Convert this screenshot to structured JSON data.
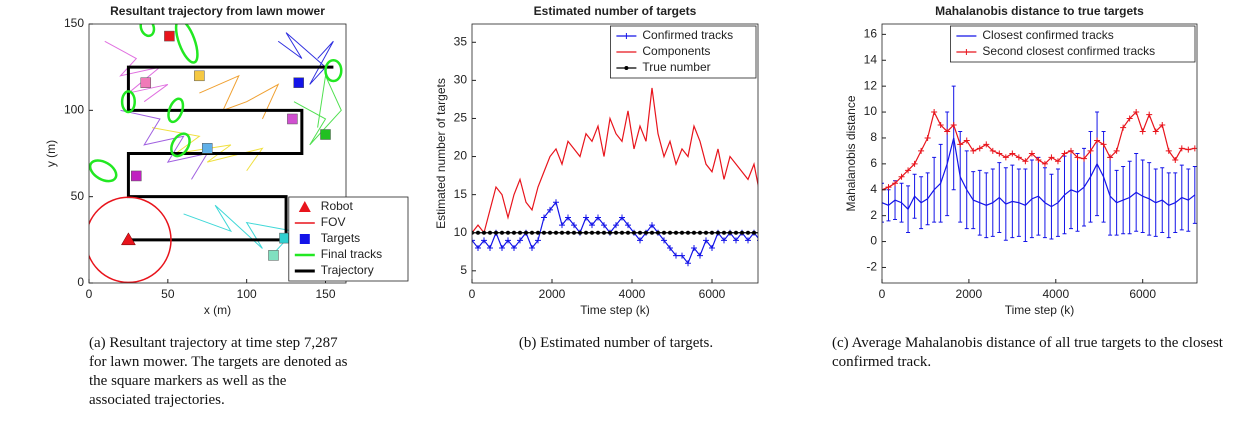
{
  "chart_data": [
    {
      "type": "trajectory",
      "title": "Resultant trajectory from lawn mower",
      "xlabel": "x (m)",
      "ylabel": "y (m)",
      "xlim": [
        0,
        163
      ],
      "ylim": [
        0,
        150
      ],
      "xticks": [
        0,
        50,
        100,
        150
      ],
      "yticks": [
        0,
        50,
        100,
        150
      ],
      "legend": "lower right",
      "robot": {
        "name": "Robot",
        "color": "#e8141c",
        "x": 25,
        "y": 25
      },
      "fov": {
        "name": "FOV",
        "color": "#e8141c",
        "radius": 27
      },
      "targets": {
        "name": "Targets",
        "color": "#1414e8",
        "points": [
          {
            "x": 51,
            "y": 143,
            "color": "#e8141c"
          },
          {
            "x": 36,
            "y": 116,
            "color": "#f07ab8"
          },
          {
            "x": 70,
            "y": 120,
            "color": "#f5c842"
          },
          {
            "x": 133,
            "y": 116,
            "color": "#1414e8"
          },
          {
            "x": 129,
            "y": 95,
            "color": "#d050d0"
          },
          {
            "x": 150,
            "y": 86,
            "color": "#22c022"
          },
          {
            "x": 75,
            "y": 78,
            "color": "#60b0e8"
          },
          {
            "x": 30,
            "y": 62,
            "color": "#c020c0"
          },
          {
            "x": 124,
            "y": 26,
            "color": "#30d0d0"
          },
          {
            "x": 117,
            "y": 16,
            "color": "#80e0c0"
          }
        ]
      },
      "final_tracks": {
        "name": "Final tracks",
        "color": "#22e822",
        "ellipses": [
          {
            "x": 37,
            "y": 148,
            "rx": 4,
            "ry": 5,
            "angle": 20
          },
          {
            "x": 62,
            "y": 140,
            "rx": 5,
            "ry": 13,
            "angle": 20
          },
          {
            "x": 25,
            "y": 105,
            "rx": 4,
            "ry": 6,
            "angle": 0
          },
          {
            "x": 55,
            "y": 100,
            "rx": 4,
            "ry": 7,
            "angle": -20
          },
          {
            "x": 58,
            "y": 80,
            "rx": 5,
            "ry": 7,
            "angle": -30
          },
          {
            "x": 9,
            "y": 65,
            "rx": 9,
            "ry": 5,
            "angle": -30
          },
          {
            "x": 155,
            "y": 123,
            "rx": 5,
            "ry": 6,
            "angle": 0
          },
          {
            "x": 158,
            "y": 17,
            "rx": 5,
            "ry": 6,
            "angle": 0
          }
        ]
      },
      "trajectory": {
        "name": "Trajectory",
        "color": "#000000",
        "x": [
          25,
          125,
          125,
          25,
          25,
          135,
          135,
          25,
          25,
          155
        ],
        "y": [
          25,
          25,
          50,
          50,
          75,
          75,
          100,
          100,
          125,
          125
        ]
      },
      "target_paths": [
        {
          "color": "#e070e0",
          "x": [
            10,
            30,
            20,
            45,
            25,
            50,
            35
          ],
          "y": [
            140,
            130,
            120,
            125,
            110,
            115,
            105
          ]
        },
        {
          "color": "#f0e040",
          "x": [
            40,
            70,
            55,
            90,
            75,
            110,
            100
          ],
          "y": [
            90,
            85,
            75,
            80,
            70,
            78,
            65
          ]
        },
        {
          "color": "#3030e0",
          "x": [
            120,
            135,
            125,
            150,
            140,
            155,
            145
          ],
          "y": [
            140,
            130,
            145,
            125,
            115,
            140,
            130
          ]
        },
        {
          "color": "#40d8d8",
          "x": [
            60,
            90,
            80,
            110,
            100,
            130,
            115
          ],
          "y": [
            40,
            30,
            45,
            20,
            35,
            30,
            15
          ]
        },
        {
          "color": "#50e050",
          "x": [
            130,
            150,
            140,
            160,
            150,
            145
          ],
          "y": [
            105,
            95,
            80,
            100,
            120,
            90
          ]
        },
        {
          "color": "#a060e0",
          "x": [
            20,
            45,
            35,
            60,
            50,
            75,
            65
          ],
          "y": [
            100,
            95,
            80,
            85,
            70,
            75,
            60
          ]
        },
        {
          "color": "#f0a030",
          "x": [
            70,
            95,
            85,
            100,
            120,
            110
          ],
          "y": [
            110,
            120,
            100,
            105,
            115,
            95
          ]
        }
      ]
    },
    {
      "type": "line",
      "title": "Estimated number of targets",
      "xlabel": "Time step (k)",
      "ylabel": "Estimated number of targets",
      "xlim": [
        0,
        7150
      ],
      "ylim": [
        3.4,
        37.4
      ],
      "xticks": [
        0,
        2000,
        4000,
        6000
      ],
      "yticks": [
        5,
        10,
        15,
        20,
        25,
        30,
        35
      ],
      "legend": "upper right",
      "x": [
        0,
        150,
        300,
        450,
        600,
        750,
        900,
        1050,
        1200,
        1350,
        1500,
        1650,
        1800,
        1950,
        2100,
        2250,
        2400,
        2550,
        2700,
        2850,
        3000,
        3150,
        3300,
        3450,
        3600,
        3750,
        3900,
        4050,
        4200,
        4350,
        4500,
        4650,
        4800,
        4950,
        5100,
        5250,
        5400,
        5550,
        5700,
        5850,
        6000,
        6150,
        6300,
        6450,
        6600,
        6750,
        6900,
        7050,
        7200
      ],
      "series": [
        {
          "name": "Confirmed tracks",
          "color": "#1414e8",
          "marker": "+",
          "values": [
            9,
            8,
            9,
            8,
            10,
            8,
            9,
            8,
            9,
            10,
            8,
            9,
            12,
            13,
            14,
            11,
            12,
            11,
            10,
            12,
            11,
            12,
            11,
            10,
            11,
            12,
            11,
            10,
            9,
            10,
            11,
            10,
            9,
            8,
            7,
            7,
            6,
            8,
            7,
            9,
            8,
            10,
            9,
            10,
            9,
            10,
            9,
            10,
            9
          ]
        },
        {
          "name": "Components",
          "color": "#e8141c",
          "marker": "none",
          "values": [
            10,
            11,
            10,
            13,
            16,
            15,
            12,
            15,
            17,
            14,
            13,
            16,
            18,
            20,
            21,
            19,
            22,
            21,
            20,
            23,
            22,
            24,
            20,
            25,
            23,
            22,
            26,
            21,
            24,
            22,
            29,
            23,
            20,
            22,
            19,
            21,
            20,
            24,
            22,
            19,
            18,
            21,
            17,
            20,
            19,
            18,
            17,
            19,
            15
          ]
        },
        {
          "name": "True number",
          "color": "#000000",
          "marker": "o",
          "values": [
            10,
            10,
            10,
            10,
            10,
            10,
            10,
            10,
            10,
            10,
            10,
            10,
            10,
            10,
            10,
            10,
            10,
            10,
            10,
            10,
            10,
            10,
            10,
            10,
            10,
            10,
            10,
            10,
            10,
            10,
            10,
            10,
            10,
            10,
            10,
            10,
            10,
            10,
            10,
            10,
            10,
            10,
            10,
            10,
            10,
            10,
            10,
            10,
            10
          ]
        }
      ]
    },
    {
      "type": "line",
      "title": "Mahalanobis distance to true targets",
      "xlabel": "Time step (k)",
      "ylabel": "Mahalanobis distance",
      "xlim": [
        0,
        7250
      ],
      "ylim": [
        -3.2,
        16.8
      ],
      "xticks": [
        0,
        2000,
        4000,
        6000
      ],
      "yticks": [
        -2,
        0,
        2,
        4,
        6,
        8,
        10,
        12,
        14,
        16
      ],
      "legend": "upper right",
      "x": [
        0,
        150,
        300,
        450,
        600,
        750,
        900,
        1050,
        1200,
        1350,
        1500,
        1650,
        1800,
        1950,
        2100,
        2250,
        2400,
        2550,
        2700,
        2850,
        3000,
        3150,
        3300,
        3450,
        3600,
        3750,
        3900,
        4050,
        4200,
        4350,
        4500,
        4650,
        4800,
        4950,
        5100,
        5250,
        5400,
        5550,
        5700,
        5850,
        6000,
        6150,
        6300,
        6450,
        6600,
        6750,
        6900,
        7050,
        7200
      ],
      "series": [
        {
          "name": "Closest confirmed tracks",
          "color": "#1414e8",
          "marker": "none",
          "values": [
            3,
            2.8,
            3.2,
            3,
            2.5,
            3.5,
            3,
            3.3,
            4,
            4.5,
            6,
            8,
            5,
            4,
            3.2,
            3,
            2.8,
            3,
            3.4,
            2.9,
            3.1,
            3,
            2.8,
            3.3,
            3.5,
            3,
            2.7,
            3,
            3.6,
            4,
            3.8,
            4.2,
            5,
            6,
            5,
            3.5,
            3,
            3.2,
            3.4,
            3.8,
            3.5,
            3.3,
            3,
            3.2,
            2.8,
            3,
            3.4,
            3.2,
            3.6
          ],
          "errors": [
            1.5,
            1.2,
            1.5,
            1.5,
            1.8,
            1.7,
            2,
            2,
            2.5,
            3,
            4,
            4,
            3.5,
            3,
            2.2,
            2.5,
            2.5,
            2.6,
            2.7,
            2.8,
            2.8,
            2.6,
            2.8,
            3,
            3,
            2.7,
            2.5,
            2.6,
            3,
            3,
            3,
            3,
            3.5,
            4,
            3.5,
            3,
            2.5,
            2.6,
            2.8,
            3,
            2.8,
            2.8,
            2.6,
            2.5,
            2.5,
            2.3,
            2.5,
            2.4,
            2.2
          ]
        },
        {
          "name": "Second closest confirmed tracks",
          "color": "#e8141c",
          "marker": "+",
          "values": [
            4,
            4.2,
            4.5,
            5,
            5.5,
            6,
            7,
            8,
            10,
            9,
            8.5,
            9,
            7.5,
            7.8,
            7,
            7.2,
            7.5,
            7,
            6.8,
            6.5,
            6.8,
            6.5,
            6.2,
            6.8,
            6.3,
            6,
            6.5,
            6.2,
            6.8,
            7,
            6.5,
            6.4,
            7,
            7.8,
            7.5,
            6.5,
            7,
            8.8,
            9.5,
            10,
            8.5,
            9.8,
            8.5,
            9,
            7,
            6.3,
            7.2,
            7.1,
            7.2
          ]
        }
      ]
    }
  ],
  "captions": [
    "(a) Resultant trajectory at time step 7,287 for lawn mower. The targets are denoted as the square markers as well as the associated trajectories.",
    "(b) Estimated number of targets.",
    "(c) Average Mahalanobis distance of all true targets to the closest confirmed track."
  ]
}
